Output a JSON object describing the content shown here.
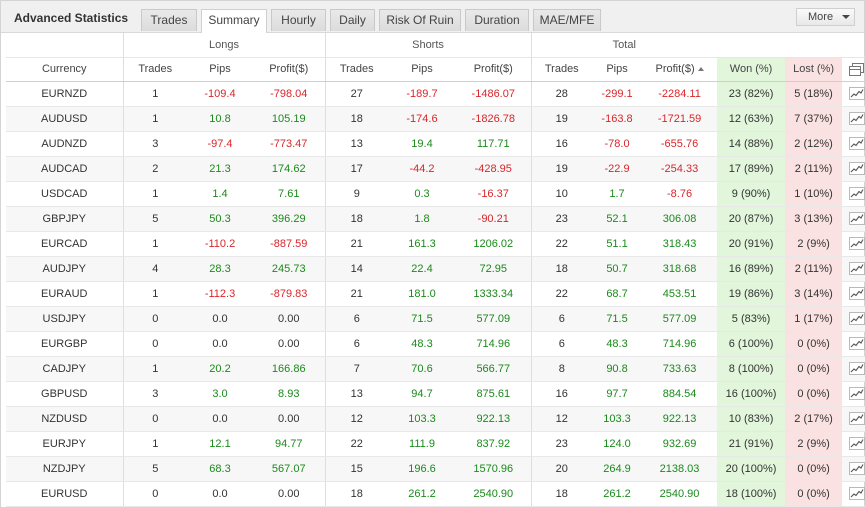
{
  "header": {
    "title": "Advanced Statistics",
    "tabs": [
      {
        "label": "Trades"
      },
      {
        "label": "Summary"
      },
      {
        "label": "Hourly"
      },
      {
        "label": "Daily"
      },
      {
        "label": "Risk Of Ruin"
      },
      {
        "label": "Duration"
      },
      {
        "label": "MAE/MFE"
      }
    ],
    "active_tab": "Summary",
    "more_label": "More"
  },
  "table": {
    "groups": {
      "longs": "Longs",
      "shorts": "Shorts",
      "total": "Total"
    },
    "columns": {
      "currency": "Currency",
      "long_trades": "Trades",
      "long_pips": "Pips",
      "long_profit": "Profit($)",
      "short_trades": "Trades",
      "short_pips": "Pips",
      "short_profit": "Profit($)",
      "total_trades": "Trades",
      "total_pips": "Pips",
      "total_profit": "Profit($)",
      "won": "Won (%)",
      "lost": "Lost (%)"
    },
    "sorted_column": "total_profit",
    "sort_direction": "ascending",
    "colors": {
      "positive": "#1a8a1a",
      "negative": "#d9262b",
      "won_bg": "#e2f6dc",
      "lost_bg": "#fbe2e2"
    },
    "rows": [
      {
        "currency": "EURNZD",
        "lt": "1",
        "lp": "-109.4",
        "lpr": "-798.04",
        "st": "27",
        "sp": "-189.7",
        "spr": "-1486.07",
        "tt": "28",
        "tp": "-299.1",
        "tpr": "-2284.11",
        "won": "23 (82%)",
        "lost": "5 (18%)"
      },
      {
        "currency": "AUDUSD",
        "lt": "1",
        "lp": "10.8",
        "lpr": "105.19",
        "st": "18",
        "sp": "-174.6",
        "spr": "-1826.78",
        "tt": "19",
        "tp": "-163.8",
        "tpr": "-1721.59",
        "won": "12 (63%)",
        "lost": "7 (37%)"
      },
      {
        "currency": "AUDNZD",
        "lt": "3",
        "lp": "-97.4",
        "lpr": "-773.47",
        "st": "13",
        "sp": "19.4",
        "spr": "117.71",
        "tt": "16",
        "tp": "-78.0",
        "tpr": "-655.76",
        "won": "14 (88%)",
        "lost": "2 (12%)"
      },
      {
        "currency": "AUDCAD",
        "lt": "2",
        "lp": "21.3",
        "lpr": "174.62",
        "st": "17",
        "sp": "-44.2",
        "spr": "-428.95",
        "tt": "19",
        "tp": "-22.9",
        "tpr": "-254.33",
        "won": "17 (89%)",
        "lost": "2 (11%)"
      },
      {
        "currency": "USDCAD",
        "lt": "1",
        "lp": "1.4",
        "lpr": "7.61",
        "st": "9",
        "sp": "0.3",
        "spr": "-16.37",
        "tt": "10",
        "tp": "1.7",
        "tpr": "-8.76",
        "won": "9 (90%)",
        "lost": "1 (10%)"
      },
      {
        "currency": "GBPJPY",
        "lt": "5",
        "lp": "50.3",
        "lpr": "396.29",
        "st": "18",
        "sp": "1.8",
        "spr": "-90.21",
        "tt": "23",
        "tp": "52.1",
        "tpr": "306.08",
        "won": "20 (87%)",
        "lost": "3 (13%)"
      },
      {
        "currency": "EURCAD",
        "lt": "1",
        "lp": "-110.2",
        "lpr": "-887.59",
        "st": "21",
        "sp": "161.3",
        "spr": "1206.02",
        "tt": "22",
        "tp": "51.1",
        "tpr": "318.43",
        "won": "20 (91%)",
        "lost": "2 (9%)"
      },
      {
        "currency": "AUDJPY",
        "lt": "4",
        "lp": "28.3",
        "lpr": "245.73",
        "st": "14",
        "sp": "22.4",
        "spr": "72.95",
        "tt": "18",
        "tp": "50.7",
        "tpr": "318.68",
        "won": "16 (89%)",
        "lost": "2 (11%)"
      },
      {
        "currency": "EURAUD",
        "lt": "1",
        "lp": "-112.3",
        "lpr": "-879.83",
        "st": "21",
        "sp": "181.0",
        "spr": "1333.34",
        "tt": "22",
        "tp": "68.7",
        "tpr": "453.51",
        "won": "19 (86%)",
        "lost": "3 (14%)"
      },
      {
        "currency": "USDJPY",
        "lt": "0",
        "lp": "0.0",
        "lpr": "0.00",
        "st": "6",
        "sp": "71.5",
        "spr": "577.09",
        "tt": "6",
        "tp": "71.5",
        "tpr": "577.09",
        "won": "5 (83%)",
        "lost": "1 (17%)"
      },
      {
        "currency": "EURGBP",
        "lt": "0",
        "lp": "0.0",
        "lpr": "0.00",
        "st": "6",
        "sp": "48.3",
        "spr": "714.96",
        "tt": "6",
        "tp": "48.3",
        "tpr": "714.96",
        "won": "6 (100%)",
        "lost": "0 (0%)"
      },
      {
        "currency": "CADJPY",
        "lt": "1",
        "lp": "20.2",
        "lpr": "166.86",
        "st": "7",
        "sp": "70.6",
        "spr": "566.77",
        "tt": "8",
        "tp": "90.8",
        "tpr": "733.63",
        "won": "8 (100%)",
        "lost": "0 (0%)"
      },
      {
        "currency": "GBPUSD",
        "lt": "3",
        "lp": "3.0",
        "lpr": "8.93",
        "st": "13",
        "sp": "94.7",
        "spr": "875.61",
        "tt": "16",
        "tp": "97.7",
        "tpr": "884.54",
        "won": "16 (100%)",
        "lost": "0 (0%)"
      },
      {
        "currency": "NZDUSD",
        "lt": "0",
        "lp": "0.0",
        "lpr": "0.00",
        "st": "12",
        "sp": "103.3",
        "spr": "922.13",
        "tt": "12",
        "tp": "103.3",
        "tpr": "922.13",
        "won": "10 (83%)",
        "lost": "2 (17%)"
      },
      {
        "currency": "EURJPY",
        "lt": "1",
        "lp": "12.1",
        "lpr": "94.77",
        "st": "22",
        "sp": "111.9",
        "spr": "837.92",
        "tt": "23",
        "tp": "124.0",
        "tpr": "932.69",
        "won": "21 (91%)",
        "lost": "2 (9%)"
      },
      {
        "currency": "NZDJPY",
        "lt": "5",
        "lp": "68.3",
        "lpr": "567.07",
        "st": "15",
        "sp": "196.6",
        "spr": "1570.96",
        "tt": "20",
        "tp": "264.9",
        "tpr": "2138.03",
        "won": "20 (100%)",
        "lost": "0 (0%)"
      },
      {
        "currency": "EURUSD",
        "lt": "0",
        "lp": "0.0",
        "lpr": "0.00",
        "st": "18",
        "sp": "261.2",
        "spr": "2540.90",
        "tt": "18",
        "tp": "261.2",
        "tpr": "2540.90",
        "won": "18 (100%)",
        "lost": "0 (0%)"
      }
    ]
  }
}
